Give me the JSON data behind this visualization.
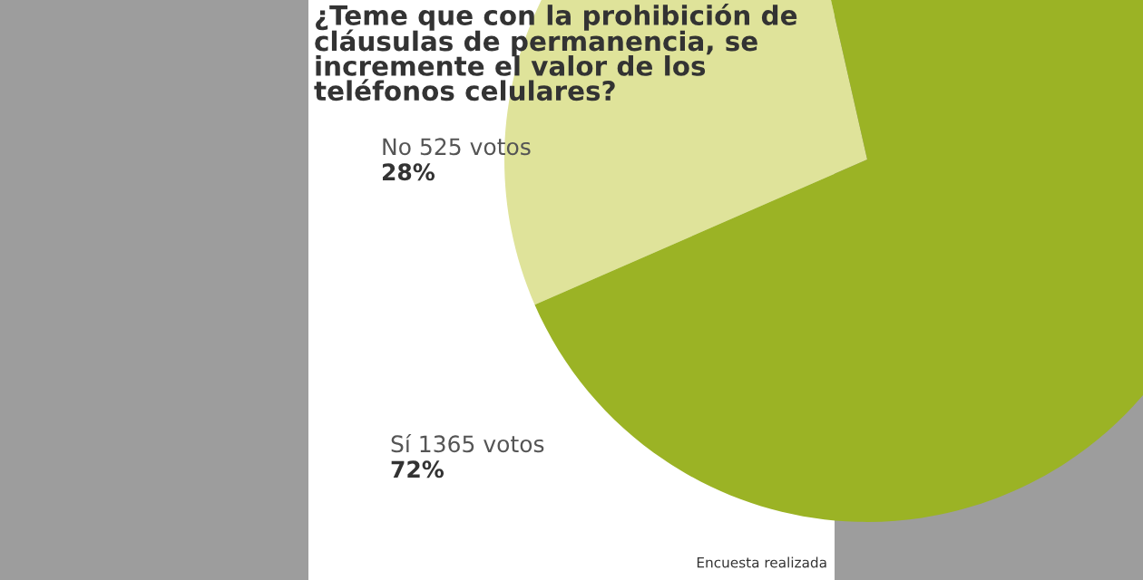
{
  "chart_data": {
    "type": "pie",
    "title": "¿Teme que con la prohibición de cláusulas de permanencia, se incremente el valor de los teléfonos celulares?",
    "categories": [
      "No 525 votos",
      "Sí 1365 votos"
    ],
    "values": [
      28,
      72
    ],
    "value_labels": [
      "28%",
      "72%"
    ],
    "colors": [
      "#dfe39a",
      "#9bb325"
    ],
    "annotations": [
      "Encuesta realizada"
    ]
  }
}
